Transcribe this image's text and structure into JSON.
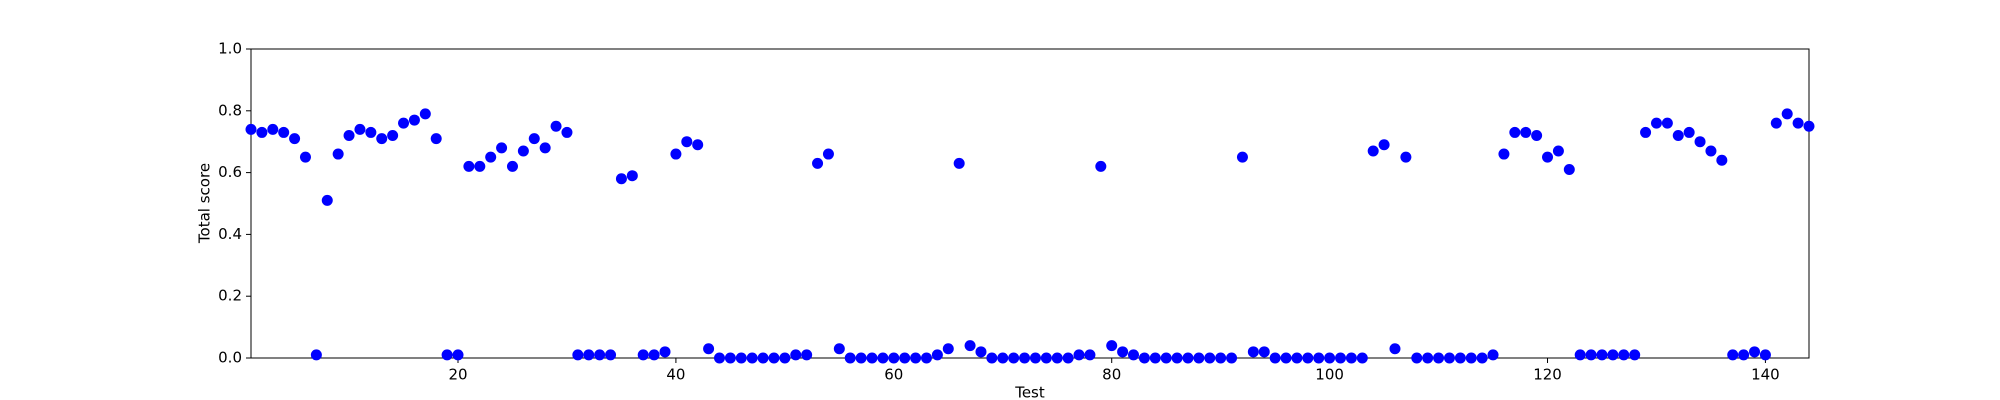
{
  "chart_data": {
    "type": "scatter",
    "xlabel": "Test",
    "ylabel": "Total score",
    "color": "#0000ff",
    "x": [
      1,
      2,
      3,
      4,
      5,
      6,
      7,
      8,
      9,
      10,
      11,
      12,
      13,
      14,
      15,
      16,
      17,
      18,
      19,
      20,
      21,
      22,
      23,
      24,
      25,
      26,
      27,
      28,
      29,
      30,
      31,
      32,
      33,
      34,
      35,
      36,
      37,
      38,
      39,
      40,
      41,
      42,
      43,
      44,
      45,
      46,
      47,
      48,
      49,
      50,
      51,
      52,
      53,
      54,
      55,
      56,
      57,
      58,
      59,
      60,
      61,
      62,
      63,
      64,
      65,
      66,
      67,
      68,
      69,
      70,
      71,
      72,
      73,
      74,
      75,
      76,
      77,
      78,
      79,
      80,
      81,
      82,
      83,
      84,
      85,
      86,
      87,
      88,
      89,
      90,
      91,
      92,
      93,
      94,
      95,
      96,
      97,
      98,
      99,
      100,
      101,
      102,
      103,
      104,
      105,
      106,
      107,
      108,
      109,
      110,
      111,
      112,
      113,
      114,
      115,
      116,
      117,
      118,
      119,
      120,
      121,
      122,
      123,
      124,
      125,
      126,
      127,
      128,
      129,
      130,
      131,
      132,
      133,
      134,
      135,
      136,
      137,
      138,
      139,
      140,
      141,
      142,
      143,
      144
    ],
    "values": [
      0.74,
      0.73,
      0.74,
      0.73,
      0.71,
      0.65,
      0.01,
      0.51,
      0.66,
      0.72,
      0.74,
      0.73,
      0.71,
      0.72,
      0.76,
      0.77,
      0.79,
      0.71,
      0.01,
      0.01,
      0.62,
      0.62,
      0.65,
      0.68,
      0.62,
      0.67,
      0.71,
      0.68,
      0.75,
      0.73,
      0.01,
      0.01,
      0.01,
      0.01,
      0.58,
      0.59,
      0.01,
      0.01,
      0.02,
      0.66,
      0.7,
      0.69,
      0.03,
      0,
      0,
      0,
      0,
      0,
      0,
      0,
      0.01,
      0.01,
      0.63,
      0.66,
      0.03,
      0,
      0,
      0,
      0,
      0,
      0,
      0,
      0,
      0.01,
      0.03,
      0.63,
      0.04,
      0.02,
      0,
      0,
      0,
      0,
      0,
      0,
      0,
      0,
      0.01,
      0.01,
      0.62,
      0.04,
      0.02,
      0.01,
      0,
      0,
      0,
      0,
      0,
      0,
      0,
      0,
      0,
      0.65,
      0.02,
      0.02,
      0,
      0,
      0,
      0,
      0,
      0,
      0,
      0,
      0,
      0.67,
      0.69,
      0.03,
      0.65,
      0,
      0,
      0,
      0,
      0,
      0,
      0,
      0.01,
      0.66,
      0.73,
      0.73,
      0.72,
      0.65,
      0.67,
      0.61,
      0.01,
      0.01,
      0.01,
      0.01,
      0.01,
      0.01,
      0.73,
      0.76,
      0.76,
      0.72,
      0.73,
      0.7,
      0.67,
      0.64,
      0.01,
      0.01,
      0.02,
      0.01,
      0.76,
      0.79,
      0.76,
      0.75
    ],
    "xlim": [
      1,
      144
    ],
    "xticks": [
      20,
      40,
      60,
      80,
      100,
      120,
      140
    ],
    "ylim": [
      0,
      1
    ],
    "yticks": [
      {
        "value": 0,
        "label": "0.0"
      },
      0.2,
      0.4,
      0.6,
      0.8,
      {
        "value": 1,
        "label": "1.0"
      }
    ]
  }
}
